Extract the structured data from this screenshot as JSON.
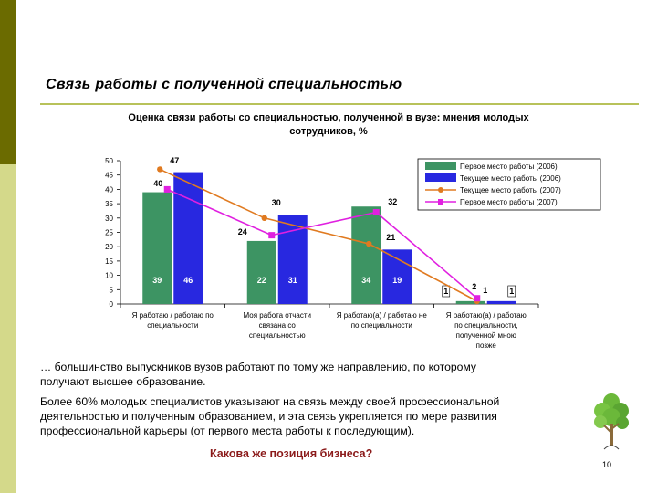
{
  "slide": {
    "title": "Связь работы с полученной специальностью",
    "page_number": "10",
    "text1": "… большинство выпускников вузов работают по тому же направлению, по которому",
    "text2": "получают высшее образование.",
    "text3": "Более 60% молодых специалистов указывают на связь между своей профессиональной",
    "text4": "деятельностью и полученным образованием, и эта связь укрепляется по мере развития",
    "text5": "профессиональной карьеры (от первого места работы к последующим).",
    "question": "Какова же позиция бизнеса?"
  },
  "colors": {
    "green_bar": "#3d9463",
    "blue_bar": "#2828e0",
    "orange_line": "#e07a20",
    "magenta_line": "#e020e0",
    "strip_dark": "#6b6b00",
    "strip_light": "#d4d98a"
  },
  "chart_data": {
    "type": "bar",
    "title_line1": "Оценка связи работы со специальностью, полученной в вузе: мнения молодых",
    "title_line2": "сотрудников, %",
    "ylim": [
      0,
      50
    ],
    "yticks": [
      "0",
      "5",
      "10",
      "15",
      "20",
      "25",
      "30",
      "35",
      "40",
      "45",
      "50"
    ],
    "categories": [
      [
        "Я работаю / работаю по",
        "специальности"
      ],
      [
        "Моя работа отчасти",
        "связана со",
        "специальностью"
      ],
      [
        "Я работаю(а) / работаю не",
        "по специальности"
      ],
      [
        "Я работаю(а) / работаю",
        "по специальности,",
        "полученной мною",
        "позже"
      ]
    ],
    "series": [
      {
        "name": "Первое место работы (2006)",
        "kind": "bar",
        "values": [
          39,
          22,
          34,
          1
        ],
        "labels": [
          "39",
          "22",
          "34",
          "1"
        ]
      },
      {
        "name": "Текущее место работы (2006)",
        "kind": "bar",
        "values": [
          46,
          31,
          19,
          1
        ],
        "labels": [
          "46",
          "31",
          "19",
          "1"
        ]
      },
      {
        "name": "Текущее место работы (2007)",
        "kind": "line",
        "values": [
          47,
          30,
          21,
          1
        ],
        "labels": [
          "47",
          "30",
          "21",
          "1"
        ]
      },
      {
        "name": "Первое место работы (2007)",
        "kind": "line",
        "values": [
          40,
          24,
          32,
          2
        ],
        "labels": [
          "40",
          "24",
          "32",
          "2"
        ]
      }
    ]
  }
}
